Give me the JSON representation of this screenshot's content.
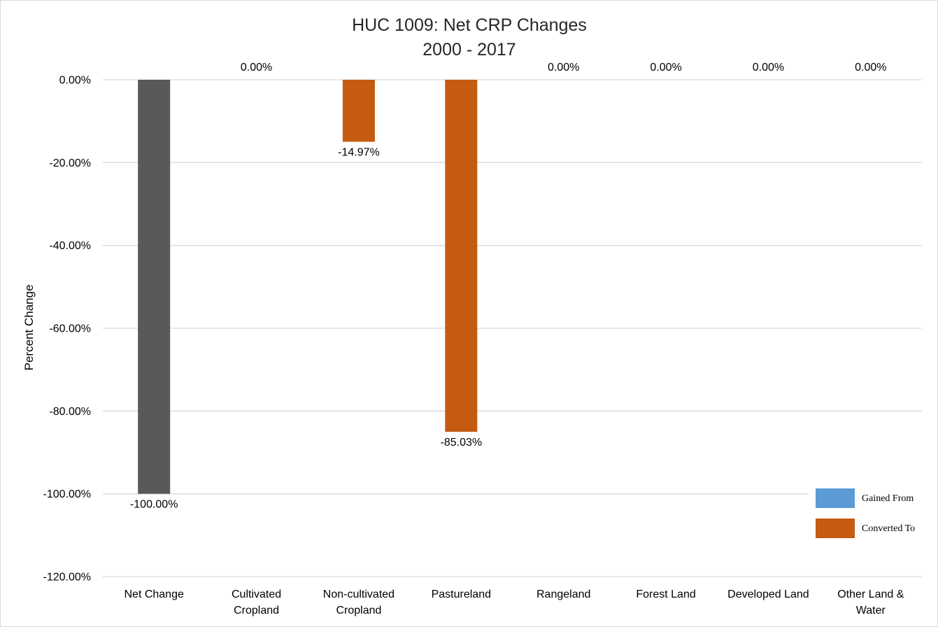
{
  "chart_data": {
    "type": "bar",
    "title": [
      "HUC 1009: Net CRP Changes",
      "2000 - 2017"
    ],
    "ylabel": "Percent Change",
    "xlabel": "",
    "ylim": [
      -120,
      0
    ],
    "yticks": [
      0,
      -20,
      -40,
      -60,
      -80,
      -100,
      -120
    ],
    "ytick_labels": [
      "0.00%",
      "-20.00%",
      "-40.00%",
      "-60.00%",
      "-80.00%",
      "-100.00%",
      "-120.00%"
    ],
    "categories": [
      [
        "Net Change"
      ],
      [
        "Cultivated",
        "Cropland"
      ],
      [
        "Non-cultivated",
        "Cropland"
      ],
      [
        "Pastureland"
      ],
      [
        "Rangeland"
      ],
      [
        "Forest Land"
      ],
      [
        "Developed Land"
      ],
      [
        "Other Land &",
        "Water"
      ]
    ],
    "values": [
      -100.0,
      0.0,
      -14.97,
      -85.03,
      0.0,
      0.0,
      0.0,
      0.0
    ],
    "data_labels": [
      "-100.00%",
      "0.00%",
      "-14.97%",
      "-85.03%",
      "0.00%",
      "0.00%",
      "0.00%",
      "0.00%"
    ],
    "label_visible": [
      true,
      true,
      true,
      true,
      true,
      true,
      true,
      true
    ],
    "bar_colors": [
      "#595959",
      "#c55a11",
      "#c55a11",
      "#c55a11",
      "#c55a11",
      "#c55a11",
      "#c55a11",
      "#c55a11"
    ],
    "legend": {
      "position": "bottom-right",
      "items": [
        {
          "label": "Gained From",
          "color": "#5b9bd5"
        },
        {
          "label": "Converted To",
          "color": "#c55a11"
        }
      ]
    },
    "grid": true
  }
}
